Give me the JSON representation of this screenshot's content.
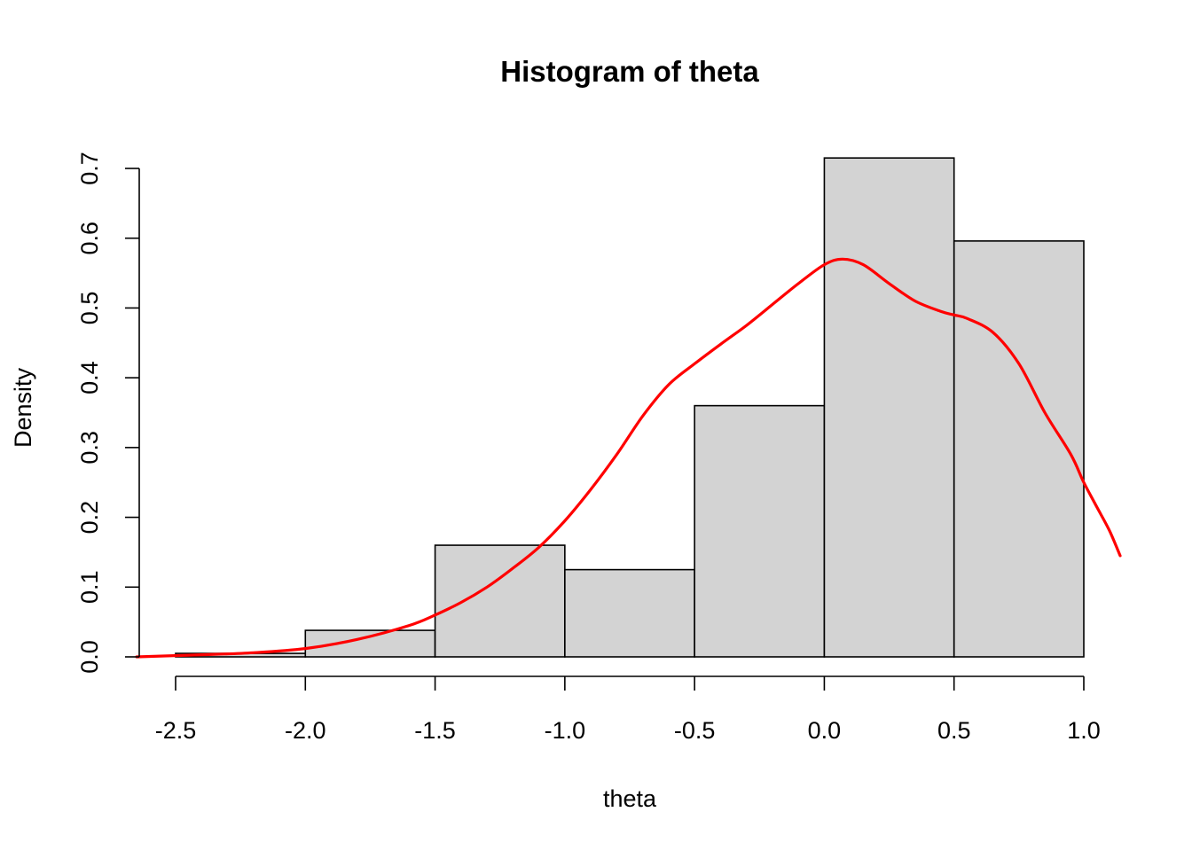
{
  "chart_data": {
    "type": "bar",
    "title": "Histogram of theta",
    "xlabel": "theta",
    "ylabel": "Density",
    "xlim": [
      -2.5,
      1.0
    ],
    "ylim": [
      0,
      0.7
    ],
    "x_ticks": [
      "-2.5",
      "-2.0",
      "-1.5",
      "-1.0",
      "-0.5",
      "0.0",
      "0.5",
      "1.0"
    ],
    "y_ticks": [
      "0.0",
      "0.1",
      "0.2",
      "0.3",
      "0.4",
      "0.5",
      "0.6",
      "0.7"
    ],
    "bins": [
      {
        "from": -2.5,
        "to": -2.0,
        "density": 0.005
      },
      {
        "from": -2.0,
        "to": -1.5,
        "density": 0.038
      },
      {
        "from": -1.5,
        "to": -1.0,
        "density": 0.16
      },
      {
        "from": -1.0,
        "to": -0.5,
        "density": 0.125
      },
      {
        "from": -0.5,
        "to": 0.0,
        "density": 0.36
      },
      {
        "from": 0.0,
        "to": 0.5,
        "density": 0.715
      },
      {
        "from": 0.5,
        "to": 1.0,
        "density": 0.596
      }
    ],
    "density_curve": {
      "x": [
        -2.65,
        -2.4,
        -2.2,
        -2.0,
        -1.8,
        -1.6,
        -1.5,
        -1.4,
        -1.3,
        -1.2,
        -1.1,
        -1.0,
        -0.9,
        -0.8,
        -0.7,
        -0.6,
        -0.5,
        -0.4,
        -0.3,
        -0.2,
        -0.1,
        0.0,
        0.07,
        0.15,
        0.25,
        0.35,
        0.45,
        0.5,
        0.55,
        0.65,
        0.75,
        0.85,
        0.95,
        1.0,
        1.05,
        1.1,
        1.14
      ],
      "y": [
        0.0,
        0.003,
        0.006,
        0.012,
        0.025,
        0.045,
        0.06,
        0.078,
        0.1,
        0.127,
        0.157,
        0.195,
        0.24,
        0.29,
        0.345,
        0.39,
        0.42,
        0.448,
        0.475,
        0.505,
        0.535,
        0.562,
        0.57,
        0.562,
        0.535,
        0.51,
        0.495,
        0.49,
        0.485,
        0.465,
        0.42,
        0.35,
        0.29,
        0.25,
        0.215,
        0.18,
        0.145
      ]
    },
    "colors": {
      "bar_fill": "#d3d3d3",
      "bar_border": "#000000",
      "density_line": "#ff0000"
    },
    "grid": false,
    "legend": "none"
  }
}
